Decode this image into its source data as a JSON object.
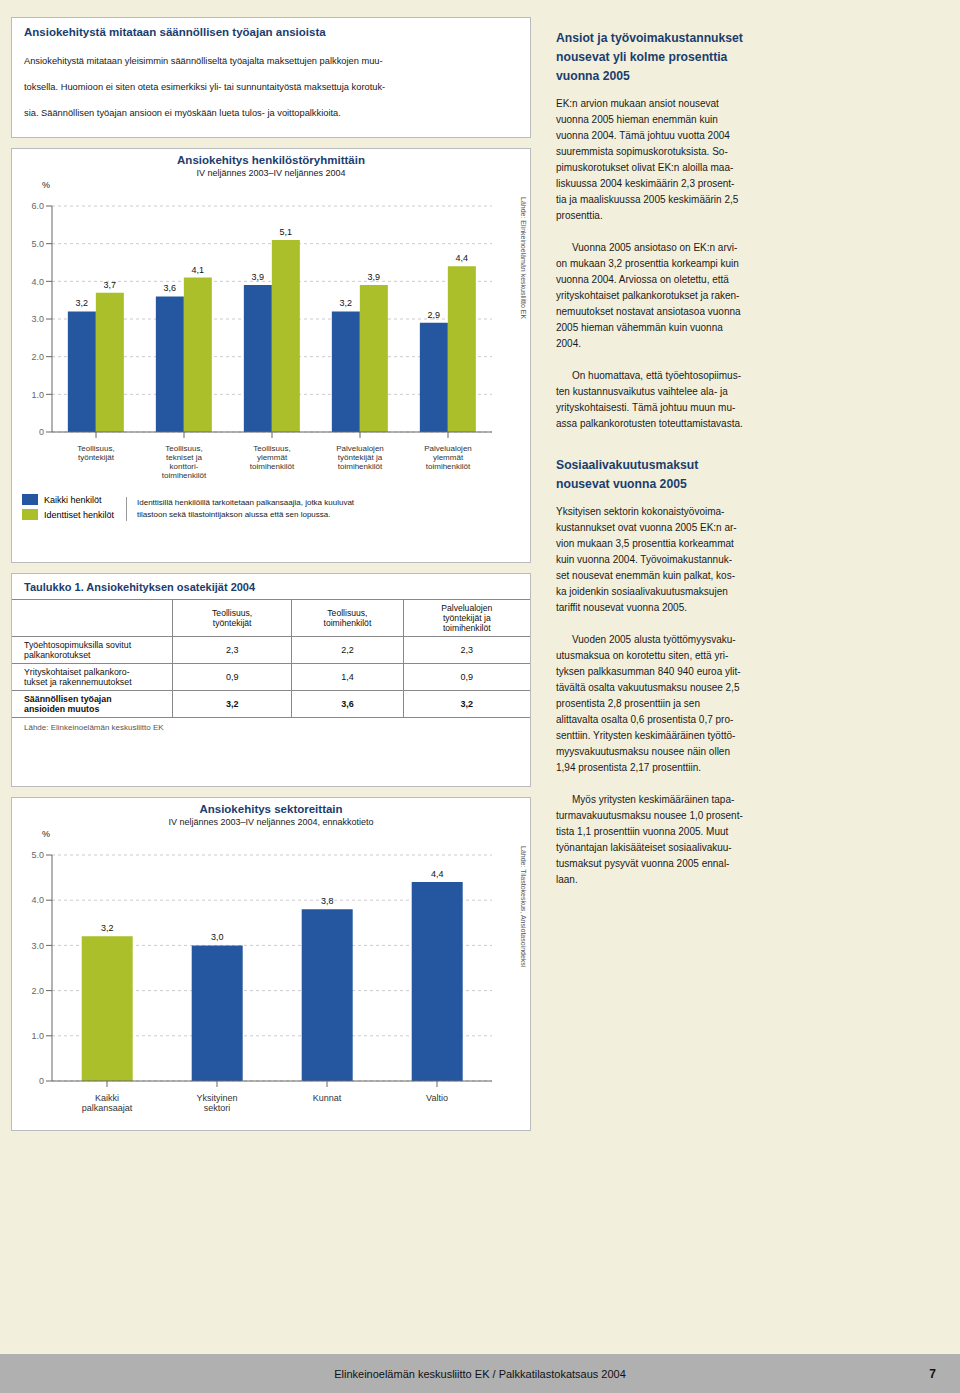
{
  "chart_data": [
    {
      "type": "bar",
      "title": "Ansiokehitys henkilöstöryhmittäin",
      "subtitle": "IV neljännes 2003–IV neljännes 2004",
      "ylabel": "%",
      "categories": [
        "Teollisuus,\ntyöntekijät",
        "Teollisuus,\ntekniset ja\nkonttori-\ntoimihenkilöt",
        "Teollisuus,\nylemmät\ntoimihenkilöt",
        "Palvelualojen\ntyöntekijät ja\ntoimihenkilöt",
        "Palvelualojen\nylemmät\ntoimihenkilöt"
      ],
      "series": [
        {
          "name": "Kaikki henkilöt",
          "color": "#2457a0",
          "values": [
            3.2,
            3.6,
            3.9,
            3.2,
            2.9
          ],
          "value_labels": [
            "3,2",
            "3,6",
            "3,9",
            "3,2",
            "2,9"
          ]
        },
        {
          "name": "Identtiset henkilöt",
          "color": "#aabf2a",
          "values": [
            3.7,
            4.1,
            5.1,
            3.9,
            4.4
          ],
          "value_labels": [
            "3,7",
            "4,1",
            "5,1",
            "3,9",
            "4,4"
          ]
        }
      ],
      "ylim": [
        0,
        6.0
      ],
      "yticks": [
        0,
        {
          "value": 1.0,
          "label": "1.0"
        },
        {
          "value": 2.0,
          "label": "2.0"
        },
        {
          "value": 3.0,
          "label": "3.0"
        },
        {
          "value": 4.0,
          "label": "4.0"
        },
        {
          "value": 5.0,
          "label": "5.0"
        },
        {
          "value": 6.0,
          "label": "6.0"
        }
      ],
      "grid": true,
      "legend": "bottom",
      "data_labels": true,
      "note": "Identtisillä henkilöillä tarkoitetaan palkansaajia, jotka kuuluvat\ntilastoon sekä tilastointijakson alussa että sen lopussa.",
      "source": "Lähde: Elinkeinoelämän keskusliitto EK"
    },
    {
      "type": "bar",
      "title": "Ansiokehitys sektoreittain",
      "subtitle": "IV neljännes 2003–IV neljännes 2004, ennakkotieto",
      "ylabel": "%",
      "categories": [
        "Kaikki\npalkansaajat",
        "Yksityinen\nsektori",
        "Kunnat",
        "Valtio"
      ],
      "values": [
        3.2,
        3.0,
        3.8,
        4.4
      ],
      "value_labels": [
        "3,2",
        "3,0",
        "3,8",
        "4,4"
      ],
      "colors": [
        "#aabf2a",
        "#2457a0",
        "#2457a0",
        "#2457a0"
      ],
      "ylim": [
        0,
        5.0
      ],
      "yticks": [
        0,
        {
          "value": 1.0,
          "label": "1.0"
        },
        {
          "value": 2.0,
          "label": "2.0"
        },
        {
          "value": 3.0,
          "label": "3.0"
        },
        {
          "value": 4.0,
          "label": "4.0"
        },
        {
          "value": 5.0,
          "label": "5.0"
        }
      ],
      "grid": true,
      "data_labels": true,
      "source": "Lähde: Tilastokeskus, Ansiotasoindeksi"
    }
  ],
  "page": {
    "top_title": "Ansiokehitystä mitataan säännöllisen työajan ansioista",
    "top_text_lines": [
      "Ansiokehitystä mitataan yleisimmin säännölliseltä työajalta maksettujen palkkojen muu-",
      "toksella. Huomioon ei siten oteta esimerkiksi yli- tai sunnuntaityöstä maksettuja korotuk-",
      "sia. Säännöllisen työajan ansioon ei myöskään lueta tulos- ja voittopalkkioita."
    ],
    "table": {
      "title": "Taulukko 1. Ansiokehityksen osatekijät 2004",
      "col_headers": [
        "Teollisuus,\ntyöntekijät",
        "Teollisuus,\ntoimihenkilöt",
        "Palvelualojen\ntyöntekijät ja\ntoimihenkilöt"
      ],
      "rows": [
        {
          "label": [
            "Työehtosopimuksilla sovitut",
            "palkankorotukset"
          ],
          "values": [
            "2,3",
            "2,2",
            "2,3"
          ]
        },
        {
          "label": [
            "Yrityskohtaiset palkankoro-",
            "tukset ja rakennemuutokset"
          ],
          "values": [
            "0,9",
            "1,4",
            "0,9"
          ]
        },
        {
          "label": [
            "Säännöllisen työajan",
            "ansioiden muutos"
          ],
          "values": [
            "3,2",
            "3,6",
            "3,2"
          ]
        }
      ],
      "source": "Lähde: Elinkeinoelämän keskusliitto EK"
    },
    "right_column": [
      {
        "heading_lines": [
          "Ansiot ja työvoimakustannukset",
          "nousevat yli kolme prosenttia",
          "vuonna 2005"
        ],
        "paragraphs": [
          [
            "EK:n arvion mukaan ansiot nousevat",
            "vuonna 2005 hieman enemmän kuin",
            "vuonna 2004. Tämä johtuu vuotta 2004",
            "suuremmista sopimuskorotuksista. So-",
            "pimuskorotukset olivat EK:n aloilla maa-",
            "liskuussa 2004 keskimäärin 2,3 prosent-",
            "tia ja maaliskuussa 2005 keskimäärin 2,5",
            "prosenttia."
          ],
          [
            "\tVuonna 2005 ansiotaso on EK:n arvi-",
            "on mukaan 3,2 prosenttia korkeampi kuin",
            "vuonna 2004. Arviossa on oletettu, että",
            "yrityskohtaiset palkankorotukset ja raken-",
            "nemuutokset nostavat ansiotasoa vuonna",
            "2005 hieman vähemmän kuin vuonna",
            "2004."
          ],
          [
            "\tOn huomattava, että työehtosopiimus-",
            "ten kustannusvaikutus vaihtelee ala- ja",
            "yrityskohtaisesti. Tämä johtuu muun mu-",
            "assa palkankorotusten toteuttamistavasta."
          ]
        ]
      },
      {
        "heading_lines": [
          "Sosiaalivakuutusmaksut",
          "nousevat vuonna 2005"
        ],
        "paragraphs": [
          [
            "Yksityisen sektorin kokonaistyövoima-",
            "kustannukset ovat vuonna 2005 EK:n ar-",
            "vion mukaan 3,5 prosenttia korkeammat",
            "kuin vuonna 2004. Työvoimakustannuk-",
            "set nousevat enemmän kuin palkat, kos-",
            "ka joidenkin sosiaalivakuutusmaksujen",
            "tariffit nousevat vuonna 2005."
          ],
          [
            "\tVuoden 2005 alusta työttömyysvaku-",
            "utusmaksua on korotettu siten, että yri-",
            "tyksen palkkasumman 840 940 euroa ylit-",
            "tävältä osalta vakuutusmaksu nousee 2,5",
            "prosentista 2,8 prosenttiin ja sen",
            "alittavalta osalta 0,6 prosentista 0,7 pro-",
            "senttiin. Yritysten keskimääräinen työttö-",
            "myysvakuutusmaksu nousee näin ollen",
            "1,94 prosentista 2,17 prosenttiin."
          ],
          [
            "\tMyös yritysten keskimääräinen tapa-",
            "turmavakuutusmaksu nousee 1,0 prosent-",
            "tista 1,1 prosenttiin vuonna 2005. Muut",
            "työnantajan lakisääteiset sosiaalivakuu-",
            "tusmaksut pysyvät vuonna 2005 ennal-",
            "laan."
          ]
        ]
      }
    ],
    "footer_text": "Elinkeinoelämän keskusliitto EK  /  Palkkatilastokatsaus 2004",
    "footer_page": "7"
  }
}
